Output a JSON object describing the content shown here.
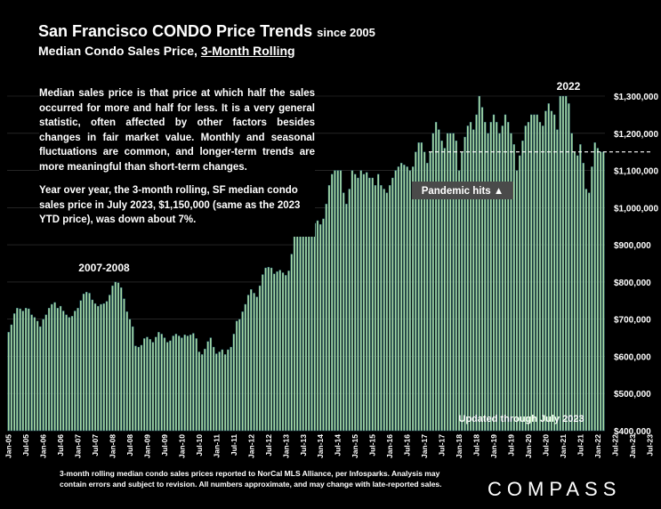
{
  "header": {
    "title": "San Francisco CONDO Price Trends",
    "title_suffix": "since 2005",
    "subtitle_prefix": "Median Condo Sales Price, ",
    "subtitle_emphasis": "3-Month Rolling"
  },
  "info": {
    "paragraph1": "Median sales price is that price at which half the sales occurred for more and half for less. It is a very general statistic, often affected by other factors besides changes in fair market value. Monthly and seasonal fluctuations are common, and longer-term trends are more meaningful than short-term changes.",
    "paragraph2": "Year over year, the 3-month rolling, SF median condo sales price in July 2023, $1,150,000 (same as the 2023 YTD price), was down about 7%."
  },
  "footnote": "3-month rolling median condo sales prices reported to NorCal MLS Alliance, per Infosparks. Analysis may contain errors and subject to revision. All numbers approximate, and may change with late-reported sales.",
  "logo": "COMPASS",
  "colors": {
    "bar": "#a8d8a0",
    "bar_edge": "#1e6b8a",
    "background": "#000000",
    "grid": "#3a3a3a",
    "reference_line": "#ffffff",
    "badge": "#4a4a4a"
  },
  "chart_data": {
    "type": "bar",
    "ylim": [
      400000,
      1300000
    ],
    "ytick_labels": [
      "$400,000",
      "$500,000",
      "$600,000",
      "$700,000",
      "$800,000",
      "$900,000",
      "$1,000,000",
      "$1,100,000",
      "$1,200,000",
      "$1,300,000"
    ],
    "xtick_labels": [
      "Jan-05",
      "Jul-05",
      "Jan-06",
      "Jul-06",
      "Jan-07",
      "Jul-07",
      "Jan-08",
      "Jul-08",
      "Jan-09",
      "Jul-09",
      "Jan-10",
      "Jul-10",
      "Jan-11",
      "Jul-11",
      "Jan-12",
      "Jul-12",
      "Jan-13",
      "Jul-13",
      "Jan-14",
      "Jul-14",
      "Jan-15",
      "Jul-15",
      "Jan-16",
      "Jul-16",
      "Jan-17",
      "Jul-17",
      "Jan-18",
      "Jul-18",
      "Jan-19",
      "Jul-19",
      "Jan-20",
      "Jul-20",
      "Jan-21",
      "Jul-21",
      "Jan-22",
      "Jul-22",
      "Jan-23",
      "Jul-23"
    ],
    "first_month": "Jan-05",
    "values": [
      665000,
      685000,
      715000,
      730000,
      728000,
      722000,
      730000,
      728000,
      712000,
      705000,
      695000,
      680000,
      700000,
      712000,
      730000,
      740000,
      745000,
      730000,
      735000,
      722000,
      712000,
      705000,
      708000,
      722000,
      730000,
      750000,
      768000,
      773000,
      770000,
      752000,
      742000,
      735000,
      740000,
      742000,
      748000,
      765000,
      790000,
      800000,
      798000,
      785000,
      755000,
      720000,
      700000,
      680000,
      628000,
      625000,
      630000,
      648000,
      652000,
      646000,
      638000,
      652000,
      665000,
      660000,
      650000,
      638000,
      642000,
      655000,
      660000,
      655000,
      650000,
      658000,
      655000,
      658000,
      662000,
      648000,
      612000,
      605000,
      620000,
      640000,
      650000,
      625000,
      607000,
      612000,
      618000,
      605000,
      618000,
      625000,
      660000,
      695000,
      700000,
      720000,
      740000,
      765000,
      780000,
      770000,
      760000,
      790000,
      820000,
      838000,
      840000,
      838000,
      822000,
      828000,
      832000,
      825000,
      818000,
      830000,
      875000,
      935000,
      930000,
      932000,
      940000,
      928000,
      932000,
      948000,
      958000,
      965000,
      955000,
      970000,
      1010000,
      1060000,
      1090000,
      1100000,
      1100000,
      1100000,
      1040000,
      1010000,
      1050000,
      1100000,
      1090000,
      1080000,
      1100000,
      1090000,
      1095000,
      1080000,
      1080000,
      1060000,
      1090000,
      1060000,
      1050000,
      1040000,
      1060000,
      1080000,
      1100000,
      1110000,
      1120000,
      1115000,
      1110000,
      1100000,
      1110000,
      1150000,
      1175000,
      1175000,
      1150000,
      1120000,
      1150000,
      1200000,
      1230000,
      1210000,
      1180000,
      1160000,
      1200000,
      1200000,
      1200000,
      1180000,
      1100000,
      1150000,
      1190000,
      1220000,
      1230000,
      1210000,
      1250000,
      1300000,
      1270000,
      1230000,
      1200000,
      1230000,
      1250000,
      1230000,
      1200000,
      1220000,
      1250000,
      1230000,
      1200000,
      1170000,
      1100000,
      1140000,
      1180000,
      1220000,
      1230000,
      1250000,
      1250000,
      1250000,
      1230000,
      1220000,
      1260000,
      1280000,
      1260000,
      1250000,
      1210000,
      1300000,
      1300000,
      1300000,
      1280000,
      1200000,
      1150000,
      1140000,
      1170000,
      1120000,
      1050000,
      1040000,
      1110000,
      1175000,
      1160000,
      1150000,
      1150000
    ],
    "reference_line": {
      "value": 1150000,
      "from": "Jan-17",
      "to": "Jul-23"
    },
    "annotations": {
      "peak_2008": "2007-2008",
      "peak_2022": "2022",
      "pandemic": "Pandemic hits ▲",
      "updated": "Updated through July 2023"
    }
  }
}
